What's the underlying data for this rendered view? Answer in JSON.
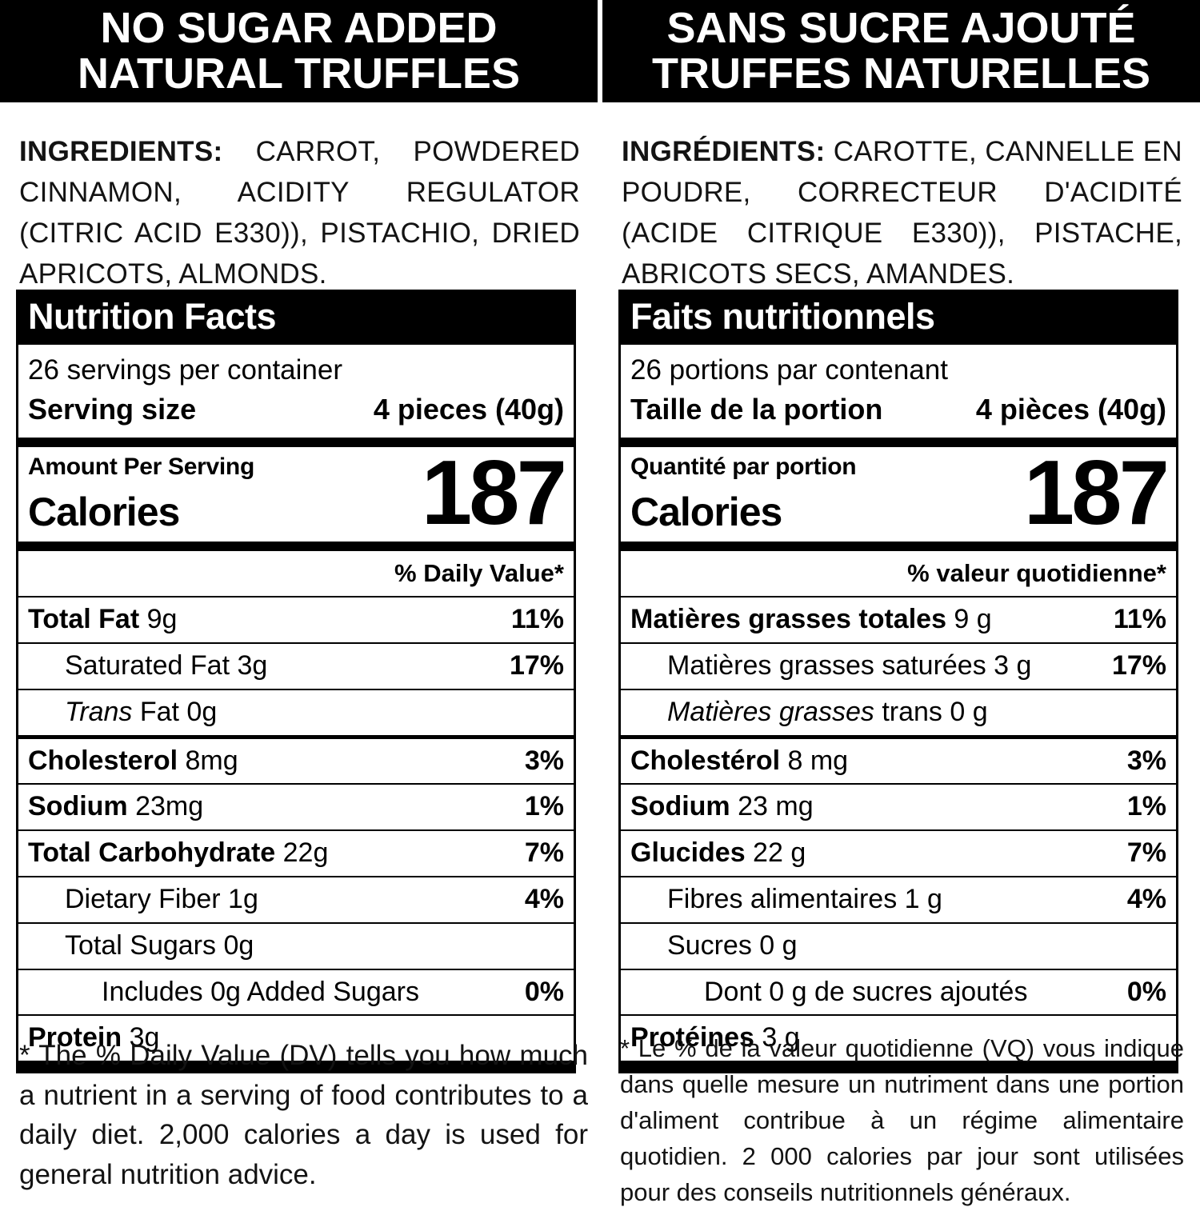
{
  "left": {
    "banner": {
      "line1": "NO SUGAR ADDED",
      "line2": "NATURAL TRUFFLES"
    },
    "ingredients": {
      "label": "INGREDIENTS:",
      "text": " CARROT, POWDERED CINNAMON, ACIDITY REGULATOR (CITRIC ACID E330)), PISTACHIO, DRIED APRICOTS, ALMONDS."
    },
    "panel": {
      "title": "Nutrition Facts",
      "servings_per_container": "26 servings per container",
      "serving_size_label": "Serving size",
      "serving_size_value": "4 pieces (40g)",
      "amount_per_serving": "Amount Per Serving",
      "calories_label": "Calories",
      "calories_value": "187",
      "daily_value_header": "% Daily Value*",
      "rows": [
        {
          "b": "Total Fat",
          "r": " 9g",
          "pct": "11%"
        },
        {
          "r": "Saturated Fat 3g",
          "pct": "17%"
        },
        {
          "i": "Trans",
          "r": " Fat 0g"
        },
        {
          "b": "Cholesterol",
          "r": " 8mg",
          "pct": "3%"
        },
        {
          "b": "Sodium",
          "r": " 23mg",
          "pct": "1%"
        },
        {
          "b": "Total Carbohydrate",
          "r": " 22g",
          "pct": "7%"
        },
        {
          "r": "Dietary Fiber 1g",
          "pct": "4%"
        },
        {
          "r": "Total Sugars 0g"
        },
        {
          "r": "Includes 0g Added Sugars",
          "pct": "0%"
        },
        {
          "b": "Protein",
          "r": " 3g"
        }
      ]
    },
    "footnote": "* The % Daily Value (DV) tells you how much a nutrient in a serving of food contributes to a daily diet. 2,000 calories a day is used for general nutrition advice."
  },
  "right": {
    "banner": {
      "line1": "SANS SUCRE AJOUTÉ",
      "line2": "TRUFFES NATURELLES"
    },
    "ingredients": {
      "label": "INGRÉDIENTS:",
      "text": " CAROTTE, CANNELLE EN POUDRE, CORRECTEUR D'ACIDITÉ (ACIDE CITRIQUE E330)), PISTACHE, ABRICOTS SECS, AMANDES."
    },
    "panel": {
      "title": "Faits nutritionnels",
      "servings_per_container": "26 portions par contenant",
      "serving_size_label": "Taille de la portion",
      "serving_size_value": "4 pièces (40g)",
      "amount_per_serving": "Quantité par portion",
      "calories_label": "Calories",
      "calories_value": "187",
      "daily_value_header": "% valeur quotidienne*",
      "rows": [
        {
          "b": "Matières grasses totales",
          "r": " 9 g",
          "pct": "11%"
        },
        {
          "r": "Matières grasses saturées 3 g",
          "pct": "17%"
        },
        {
          "i": "Matières grasses",
          "r": " trans 0 g"
        },
        {
          "b": "Cholestérol",
          "r": " 8 mg",
          "pct": "3%"
        },
        {
          "b": "Sodium",
          "r": " 23 mg",
          "pct": "1%"
        },
        {
          "b": "Glucides",
          "r": " 22 g",
          "pct": "7%"
        },
        {
          "r": "Fibres alimentaires 1 g",
          "pct": "4%"
        },
        {
          "r": "Sucres 0 g"
        },
        {
          "r": "Dont 0 g de sucres ajoutés",
          "pct": "0%"
        },
        {
          "b": "Protéines",
          "r": " 3 g"
        }
      ]
    },
    "footnote": "* Le % de la valeur quotidienne (VQ) vous indique dans quelle mesure un nutriment dans une portion d'aliment contribue à un régime alimentaire quotidien. 2 000 calories par jour sont utilisées pour des conseils nutritionnels généraux."
  }
}
